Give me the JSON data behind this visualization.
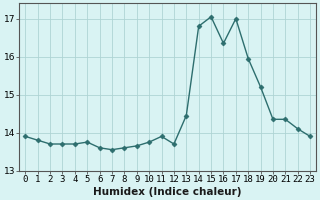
{
  "x": [
    0,
    1,
    2,
    3,
    4,
    5,
    6,
    7,
    8,
    9,
    10,
    11,
    12,
    13,
    14,
    15,
    16,
    17,
    18,
    19,
    20,
    21,
    22,
    23
  ],
  "y": [
    13.9,
    13.8,
    13.7,
    13.7,
    13.7,
    13.75,
    13.6,
    13.55,
    13.6,
    13.65,
    13.75,
    13.9,
    13.7,
    14.45,
    16.8,
    17.05,
    16.35,
    17.0,
    15.95,
    15.2,
    14.35,
    14.35,
    14.1,
    13.9
  ],
  "line_color": "#2d6e6e",
  "marker": "D",
  "marker_size": 2.5,
  "bg_color": "#d9f3f3",
  "grid_color": "#aed4d4",
  "xlabel": "Humidex (Indice chaleur)",
  "ylim": [
    13,
    17.4
  ],
  "xlim": [
    -0.5,
    23.5
  ],
  "yticks": [
    13,
    14,
    15,
    16,
    17
  ],
  "xticks": [
    0,
    1,
    2,
    3,
    4,
    5,
    6,
    7,
    8,
    9,
    10,
    11,
    12,
    13,
    14,
    15,
    16,
    17,
    18,
    19,
    20,
    21,
    22,
    23
  ],
  "label_fontsize": 7.5,
  "tick_fontsize": 6.5,
  "spine_color": "#555555"
}
